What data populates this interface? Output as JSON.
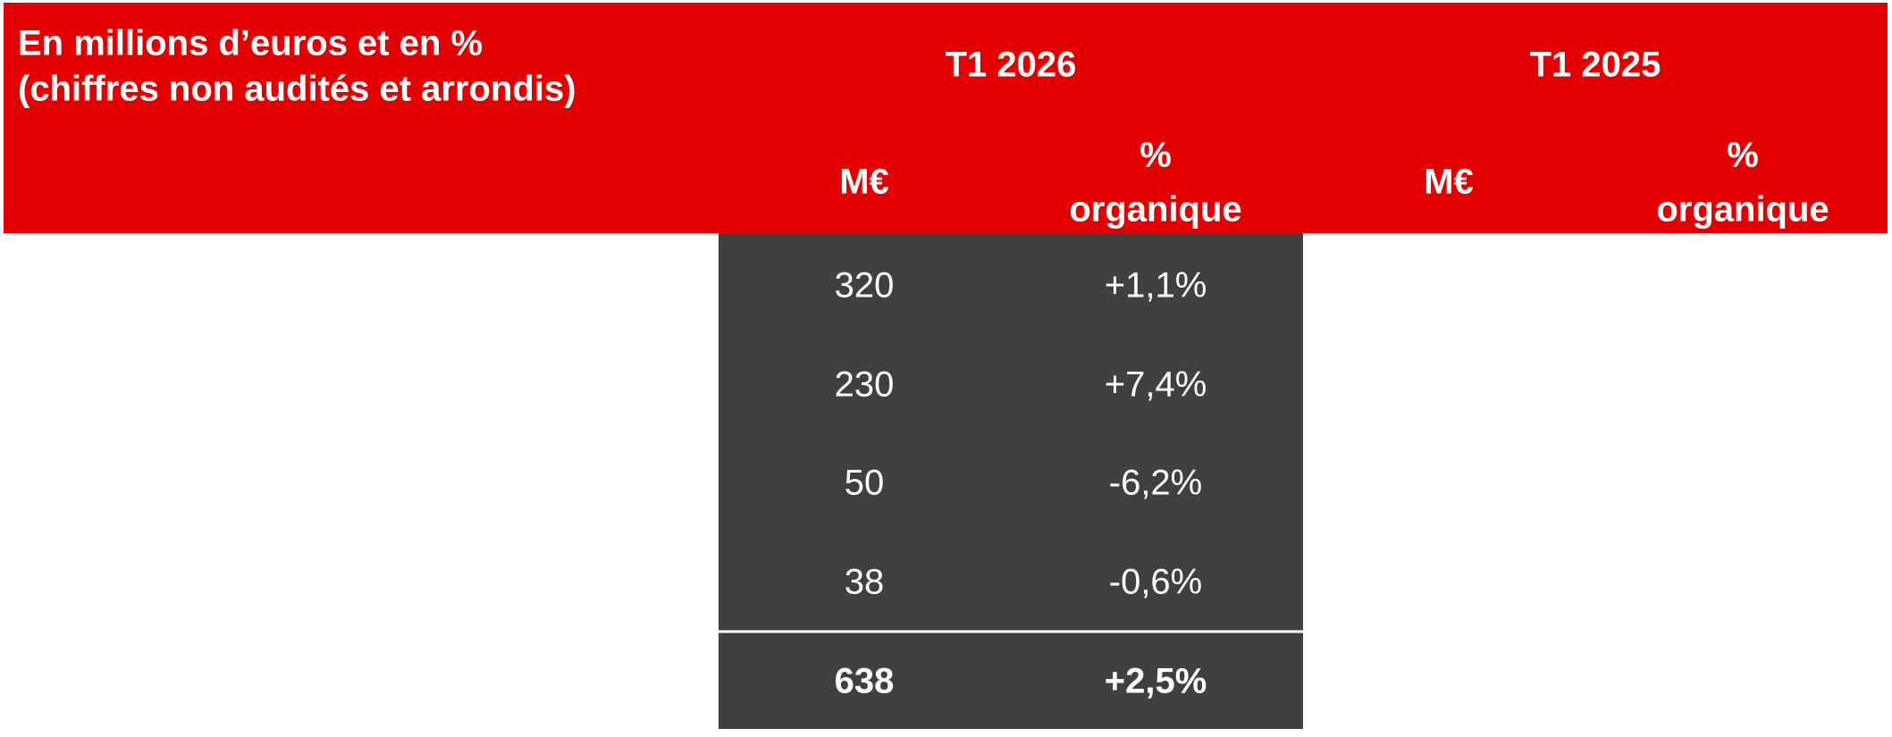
{
  "header": {
    "title": [
      "En millions d’euros et en %",
      "(chiffres non audités et arrondis)"
    ],
    "periods": [
      {
        "label": "T1 2026",
        "amount": "M€",
        "growth": [
          "%",
          "organique"
        ]
      },
      {
        "label": "T1 2025",
        "amount": "M€",
        "growth": [
          "%",
          "organique"
        ]
      }
    ]
  },
  "table": {
    "rows": [
      [
        "320",
        "+1,1%"
      ],
      [
        "230",
        "+7,4%"
      ],
      [
        "50",
        "-6,2%"
      ],
      [
        "38",
        "-0,6%"
      ]
    ],
    "total": [
      "638",
      "+2,5%"
    ]
  }
}
